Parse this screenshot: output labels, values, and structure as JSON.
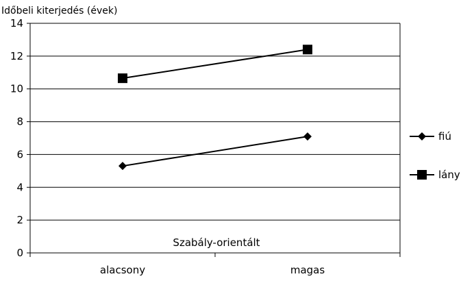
{
  "chart_data": {
    "type": "line",
    "title": "",
    "ylabel": "Időbeli kiterjedés (évek)",
    "xlabel": "",
    "annotation": "Szabály-orientált",
    "categories": [
      "alacsony",
      "magas"
    ],
    "ylim": [
      0,
      14
    ],
    "yticks": [
      0,
      2,
      4,
      6,
      8,
      10,
      12,
      14
    ],
    "ytick_labels": [
      "0",
      "2",
      "4",
      "6",
      "8",
      "10",
      "12",
      "14"
    ],
    "grid": true,
    "legend_position": "right",
    "series": [
      {
        "name": "fiú",
        "marker": "diamond",
        "color": "#000000",
        "values": [
          5.3,
          7.1
        ]
      },
      {
        "name": "lány",
        "marker": "square",
        "color": "#000000",
        "values": [
          10.65,
          12.4
        ]
      }
    ]
  }
}
